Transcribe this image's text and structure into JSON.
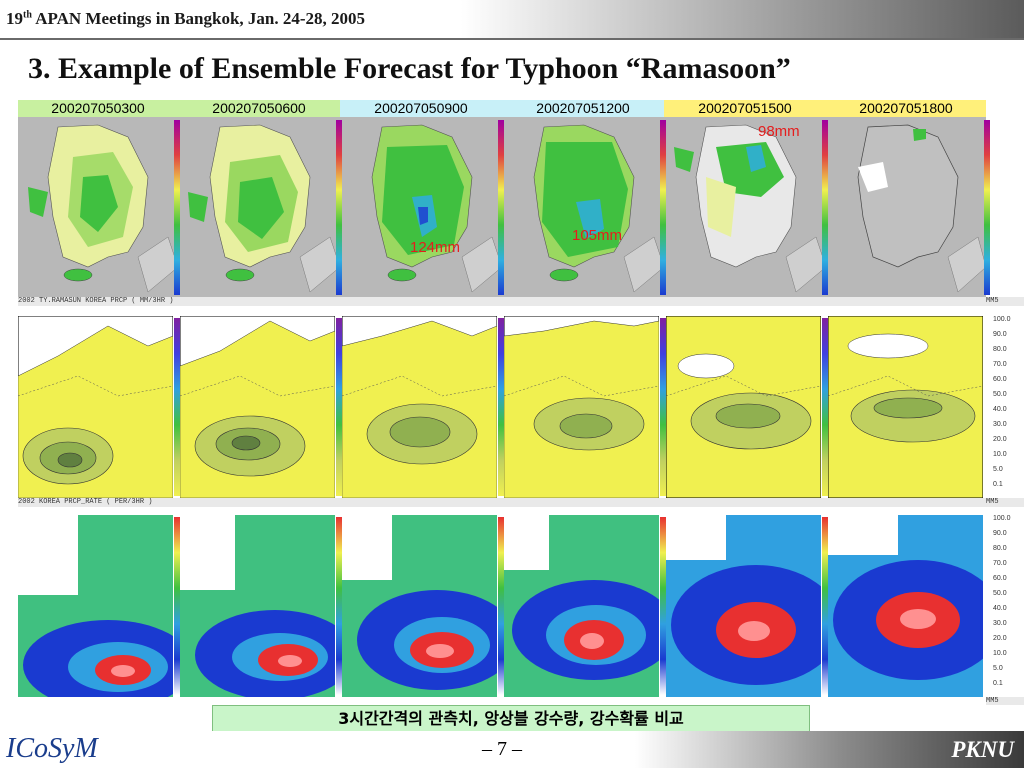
{
  "header": {
    "meeting_ordinal": "19",
    "meeting_suffix": "th",
    "meeting_rest": " APAN Meetings in Bangkok, Jan. 24-28, 2005"
  },
  "slide_title": "3. Example of Ensemble Forecast for Typhoon  “Ramasoon”",
  "timestamps": [
    {
      "label": "200207050300",
      "color": "#c8f0a0"
    },
    {
      "label": "200207050600",
      "color": "#c8f0a0"
    },
    {
      "label": "200207050900",
      "color": "#c8f0f8"
    },
    {
      "label": "200207051200",
      "color": "#c8f0f8"
    },
    {
      "label": "200207051500",
      "color": "#fff07a"
    },
    {
      "label": "200207051800",
      "color": "#fff07a"
    }
  ],
  "row_captions": {
    "row1": "2002 TY.RAMASUN KOREA PRCP ( MM/3HR )",
    "row1_end": "MM5",
    "row2": "2002 KOREA PRCP_RATE ( PER/3HR )",
    "row2_end": "MM5",
    "row3_end": "MM5"
  },
  "annotations": {
    "obs_max_1": "98mm",
    "obs_max_2": "124mm",
    "obs_max_3": "105mm"
  },
  "legend_ticks": [
    "100.0",
    "90.0",
    "80.0",
    "70.0",
    "60.0",
    "50.0",
    "40.0",
    "30.0",
    "20.0",
    "10.0",
    "5.0",
    "0.1"
  ],
  "note": {
    "bold_num": "3",
    "text": "시간간격의 관측치, 앙상블 강수량, 강수확률 비교"
  },
  "footer": {
    "logo_text": "ICoSyM",
    "page_number": "– 7 –",
    "org": "PKNU"
  },
  "colors": {
    "title": "#101010",
    "annotation": "#e51d1d",
    "land_rain": "#40c040",
    "prob_yellow": "#f0f050",
    "ensemble_red": "#e83030",
    "ensemble_blue": "#1a3ad0"
  }
}
